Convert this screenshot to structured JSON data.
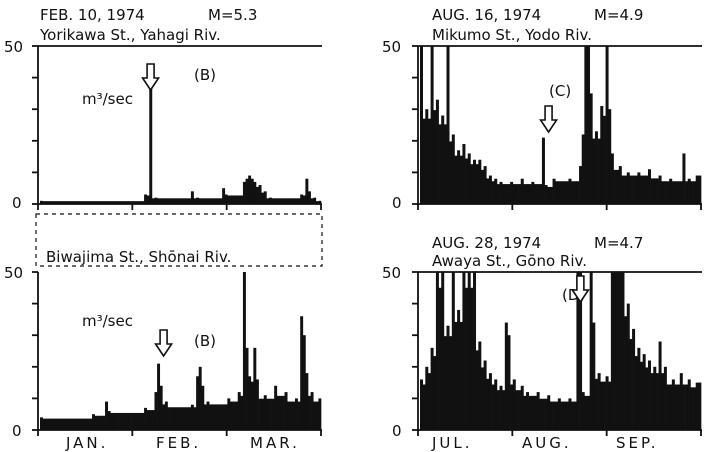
{
  "chart_data": [
    {
      "type": "bar",
      "date": "FEB. 10, 1974",
      "magnitude": "M=5.3",
      "station": "Yorikawa St., Yahagi Riv.",
      "unit": "m³/sec",
      "ylim": [
        0,
        50
      ],
      "y_tick_labels": [
        "50",
        "0"
      ],
      "event_label": "(B)",
      "event_day": 42,
      "months": [],
      "spikes": [
        {
          "day": 0,
          "value": 1
        },
        {
          "day": 40,
          "value": 3
        },
        {
          "day": 42,
          "value": 37
        },
        {
          "day": 44,
          "value": 2
        },
        {
          "day": 58,
          "value": 4
        },
        {
          "day": 60,
          "value": 2
        },
        {
          "day": 70,
          "value": 5
        },
        {
          "day": 71,
          "value": 3
        },
        {
          "day": 78,
          "value": 7
        },
        {
          "day": 79,
          "value": 8
        },
        {
          "day": 80,
          "value": 9
        },
        {
          "day": 81,
          "value": 8
        },
        {
          "day": 82,
          "value": 7
        },
        {
          "day": 84,
          "value": 6
        },
        {
          "day": 86,
          "value": 4
        },
        {
          "day": 88,
          "value": 2
        },
        {
          "day": 100,
          "value": 3
        },
        {
          "day": 102,
          "value": 8
        },
        {
          "day": 103,
          "value": 4
        },
        {
          "day": 105,
          "value": 2
        },
        {
          "day": 107,
          "value": 1
        }
      ],
      "days": 108
    },
    {
      "type": "bar",
      "date": "",
      "magnitude": "",
      "station": "Biwajima St., Shōnai Riv.",
      "unit": "m³/sec",
      "ylim": [
        0,
        50
      ],
      "y_tick_labels": [
        "50",
        "0"
      ],
      "event_label": "(B)",
      "event_day": 47,
      "months": [
        "JAN.",
        "FEB.",
        "MAR."
      ],
      "spikes": [
        {
          "day": 0,
          "value": 4
        },
        {
          "day": 20,
          "value": 5
        },
        {
          "day": 25,
          "value": 9
        },
        {
          "day": 26,
          "value": 6
        },
        {
          "day": 40,
          "value": 7
        },
        {
          "day": 44,
          "value": 12
        },
        {
          "day": 45,
          "value": 21
        },
        {
          "day": 46,
          "value": 14
        },
        {
          "day": 48,
          "value": 9
        },
        {
          "day": 58,
          "value": 8
        },
        {
          "day": 60,
          "value": 17
        },
        {
          "day": 61,
          "value": 20
        },
        {
          "day": 62,
          "value": 14
        },
        {
          "day": 64,
          "value": 9
        },
        {
          "day": 72,
          "value": 10
        },
        {
          "day": 76,
          "value": 12
        },
        {
          "day": 78,
          "value": 50
        },
        {
          "day": 79,
          "value": 26
        },
        {
          "day": 80,
          "value": 17
        },
        {
          "day": 82,
          "value": 26
        },
        {
          "day": 83,
          "value": 16
        },
        {
          "day": 86,
          "value": 11
        },
        {
          "day": 90,
          "value": 14
        },
        {
          "day": 94,
          "value": 12
        },
        {
          "day": 98,
          "value": 10
        },
        {
          "day": 100,
          "value": 36
        },
        {
          "day": 101,
          "value": 30
        },
        {
          "day": 102,
          "value": 18
        },
        {
          "day": 104,
          "value": 12
        },
        {
          "day": 107,
          "value": 10
        }
      ],
      "days": 108
    },
    {
      "type": "bar",
      "date": "AUG. 16, 1974",
      "magnitude": "M=4.9",
      "station": "Mikumo St., Yodo Riv.",
      "unit": "",
      "ylim": [
        0,
        50
      ],
      "y_tick_labels": [
        "50",
        "0"
      ],
      "event_label": "(C)",
      "event_day": 48,
      "months": [],
      "spikes": [
        {
          "day": 0,
          "value": 50
        },
        {
          "day": 2,
          "value": 30
        },
        {
          "day": 4,
          "value": 50
        },
        {
          "day": 6,
          "value": 33
        },
        {
          "day": 8,
          "value": 28
        },
        {
          "day": 10,
          "value": 50
        },
        {
          "day": 12,
          "value": 22
        },
        {
          "day": 14,
          "value": 17
        },
        {
          "day": 16,
          "value": 19
        },
        {
          "day": 18,
          "value": 16
        },
        {
          "day": 20,
          "value": 14
        },
        {
          "day": 22,
          "value": 14
        },
        {
          "day": 24,
          "value": 12
        },
        {
          "day": 26,
          "value": 9
        },
        {
          "day": 28,
          "value": 8
        },
        {
          "day": 30,
          "value": 7
        },
        {
          "day": 34,
          "value": 7
        },
        {
          "day": 38,
          "value": 8
        },
        {
          "day": 42,
          "value": 7
        },
        {
          "day": 46,
          "value": 21
        },
        {
          "day": 47,
          "value": 6
        },
        {
          "day": 50,
          "value": 8
        },
        {
          "day": 56,
          "value": 8
        },
        {
          "day": 60,
          "value": 12
        },
        {
          "day": 61,
          "value": 22
        },
        {
          "day": 62,
          "value": 50
        },
        {
          "day": 63,
          "value": 50
        },
        {
          "day": 64,
          "value": 35
        },
        {
          "day": 66,
          "value": 23
        },
        {
          "day": 68,
          "value": 31
        },
        {
          "day": 70,
          "value": 50
        },
        {
          "day": 71,
          "value": 30
        },
        {
          "day": 72,
          "value": 16
        },
        {
          "day": 75,
          "value": 12
        },
        {
          "day": 78,
          "value": 10
        },
        {
          "day": 82,
          "value": 10
        },
        {
          "day": 86,
          "value": 11
        },
        {
          "day": 90,
          "value": 9
        },
        {
          "day": 94,
          "value": 8
        },
        {
          "day": 99,
          "value": 16
        },
        {
          "day": 101,
          "value": 8
        },
        {
          "day": 104,
          "value": 9
        }
      ],
      "days": 106
    },
    {
      "type": "bar",
      "date": "AUG. 28, 1974",
      "magnitude": "M=4.7",
      "station": "Awaya St., Gōno Riv.",
      "unit": "",
      "ylim": [
        0,
        50
      ],
      "y_tick_labels": [
        "50",
        "0"
      ],
      "event_label": "(D)",
      "event_day": 60,
      "months": [
        "JUL.",
        "AUG.",
        "SEP."
      ],
      "spikes": [
        {
          "day": 0,
          "value": 16
        },
        {
          "day": 2,
          "value": 20
        },
        {
          "day": 4,
          "value": 26
        },
        {
          "day": 6,
          "value": 50
        },
        {
          "day": 8,
          "value": 50
        },
        {
          "day": 10,
          "value": 33
        },
        {
          "day": 12,
          "value": 50
        },
        {
          "day": 14,
          "value": 38
        },
        {
          "day": 16,
          "value": 50
        },
        {
          "day": 18,
          "value": 50
        },
        {
          "day": 20,
          "value": 50
        },
        {
          "day": 22,
          "value": 28
        },
        {
          "day": 24,
          "value": 22
        },
        {
          "day": 26,
          "value": 18
        },
        {
          "day": 28,
          "value": 16
        },
        {
          "day": 30,
          "value": 14
        },
        {
          "day": 32,
          "value": 34
        },
        {
          "day": 33,
          "value": 30
        },
        {
          "day": 35,
          "value": 16
        },
        {
          "day": 38,
          "value": 14
        },
        {
          "day": 40,
          "value": 12
        },
        {
          "day": 44,
          "value": 12
        },
        {
          "day": 48,
          "value": 11
        },
        {
          "day": 52,
          "value": 10
        },
        {
          "day": 56,
          "value": 10
        },
        {
          "day": 59,
          "value": 50
        },
        {
          "day": 60,
          "value": 50
        },
        {
          "day": 61,
          "value": 12
        },
        {
          "day": 64,
          "value": 50
        },
        {
          "day": 65,
          "value": 34
        },
        {
          "day": 67,
          "value": 18
        },
        {
          "day": 70,
          "value": 17
        },
        {
          "day": 72,
          "value": 50
        },
        {
          "day": 73,
          "value": 50
        },
        {
          "day": 74,
          "value": 50
        },
        {
          "day": 75,
          "value": 50
        },
        {
          "day": 76,
          "value": 50
        },
        {
          "day": 78,
          "value": 40
        },
        {
          "day": 80,
          "value": 32
        },
        {
          "day": 82,
          "value": 26
        },
        {
          "day": 84,
          "value": 24
        },
        {
          "day": 86,
          "value": 22
        },
        {
          "day": 88,
          "value": 20
        },
        {
          "day": 90,
          "value": 28
        },
        {
          "day": 92,
          "value": 20
        },
        {
          "day": 95,
          "value": 16
        },
        {
          "day": 98,
          "value": 18
        },
        {
          "day": 101,
          "value": 16
        },
        {
          "day": 104,
          "value": 15
        }
      ],
      "days": 106
    }
  ]
}
